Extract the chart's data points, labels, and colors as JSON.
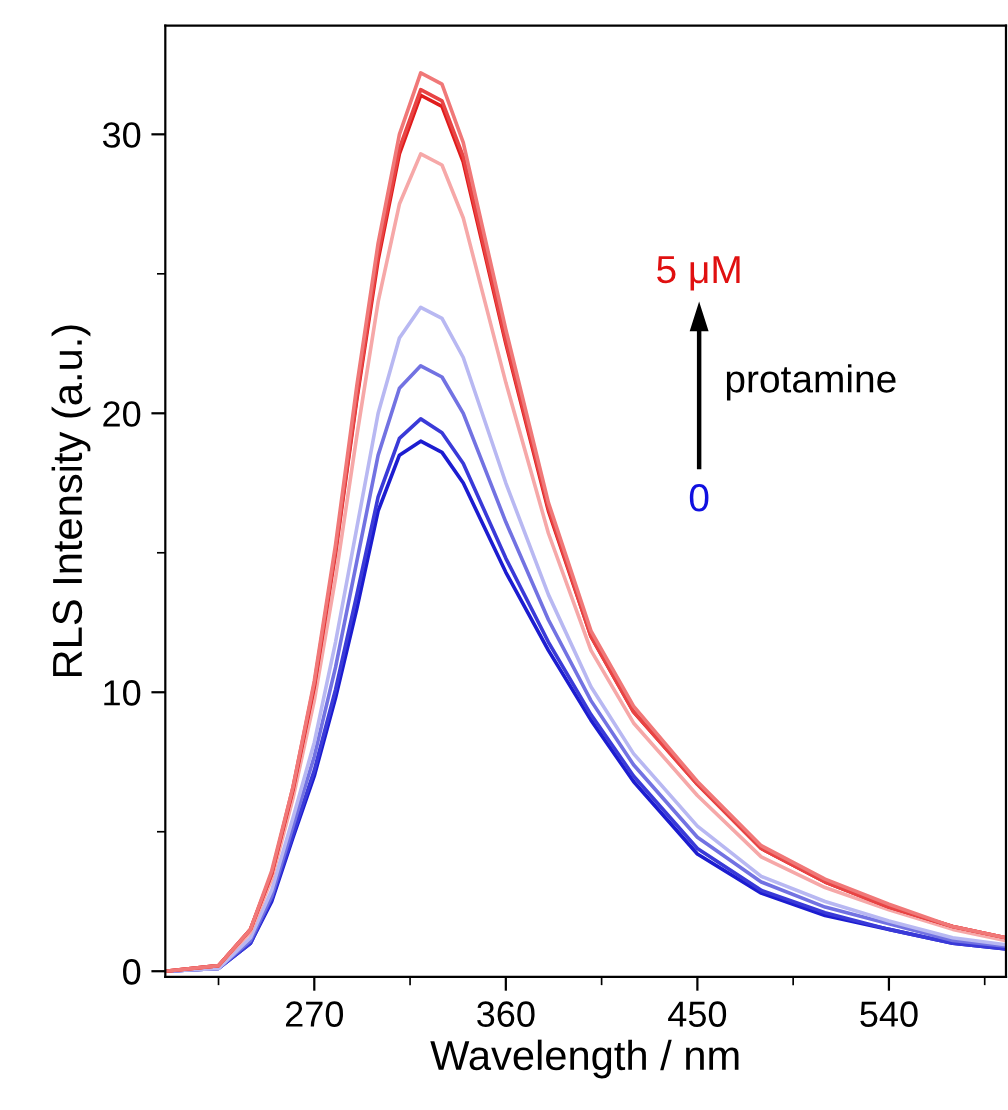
{
  "chart_data": {
    "type": "line",
    "xlabel": "Wavelength / nm",
    "ylabel": "RLS Intensity (a.u.)",
    "x": [
      200,
      225,
      240,
      250,
      260,
      270,
      280,
      290,
      300,
      310,
      320,
      330,
      340,
      360,
      380,
      400,
      420,
      450,
      480,
      510,
      540,
      570,
      595
    ],
    "series": [
      {
        "color": "#1c1cd0",
        "values": [
          0,
          0.1,
          1.0,
          2.5,
          4.8,
          7.0,
          9.8,
          13.0,
          16.5,
          18.5,
          19.0,
          18.6,
          17.5,
          14.3,
          11.5,
          9.0,
          6.8,
          4.2,
          2.8,
          2.0,
          1.5,
          1.0,
          0.8
        ]
      },
      {
        "color": "#3a3ad8",
        "values": [
          0,
          0.1,
          1.0,
          2.6,
          4.9,
          7.2,
          10.1,
          13.5,
          17.0,
          19.1,
          19.8,
          19.3,
          18.2,
          14.8,
          11.8,
          9.2,
          7.0,
          4.4,
          2.9,
          2.1,
          1.5,
          1.0,
          0.8
        ]
      },
      {
        "color": "#7272e2",
        "values": [
          0,
          0.1,
          1.1,
          2.7,
          5.2,
          7.7,
          10.9,
          14.7,
          18.5,
          20.9,
          21.7,
          21.3,
          20.0,
          16.1,
          12.6,
          9.7,
          7.4,
          4.8,
          3.2,
          2.3,
          1.7,
          1.1,
          0.9
        ]
      },
      {
        "color": "#b8b8f2",
        "values": [
          0,
          0.1,
          1.2,
          2.9,
          5.5,
          8.2,
          11.8,
          15.9,
          20.0,
          22.7,
          23.8,
          23.4,
          22.0,
          17.5,
          13.5,
          10.2,
          7.8,
          5.2,
          3.4,
          2.5,
          1.8,
          1.2,
          0.95
        ]
      },
      {
        "color": "#f6a8a8",
        "values": [
          0,
          0.2,
          1.4,
          3.3,
          6.2,
          9.7,
          14.1,
          19.2,
          24.0,
          27.5,
          29.3,
          28.9,
          27.0,
          21.1,
          15.7,
          11.5,
          8.9,
          6.3,
          4.1,
          3.0,
          2.2,
          1.5,
          1.1
        ]
      },
      {
        "color": "#e01c1c",
        "values": [
          0,
          0.2,
          1.5,
          3.5,
          6.5,
          10.2,
          15.0,
          20.5,
          25.5,
          29.3,
          31.4,
          31.0,
          29.0,
          22.5,
          16.5,
          12.0,
          9.3,
          6.7,
          4.4,
          3.2,
          2.3,
          1.6,
          1.2
        ]
      },
      {
        "color": "#e84444",
        "values": [
          0,
          0.2,
          1.5,
          3.5,
          6.6,
          10.3,
          15.1,
          20.6,
          25.7,
          29.5,
          31.6,
          31.2,
          29.2,
          22.6,
          16.6,
          12.0,
          9.3,
          6.7,
          4.4,
          3.2,
          2.3,
          1.6,
          1.2
        ]
      },
      {
        "color": "#f07878",
        "values": [
          0,
          0.2,
          1.5,
          3.6,
          6.6,
          10.4,
          15.3,
          21.0,
          26.1,
          30.0,
          32.2,
          31.8,
          29.7,
          23.0,
          16.8,
          12.2,
          9.5,
          6.8,
          4.5,
          3.3,
          2.4,
          1.6,
          1.2
        ]
      }
    ],
    "xlim": [
      200,
      595
    ],
    "ylim": [
      -0.2,
      33.9
    ],
    "xticks": [
      270,
      360,
      450,
      540
    ],
    "yticks": [
      0,
      10,
      20,
      30
    ],
    "annotations": [
      "5 μM",
      "protamine",
      "0"
    ],
    "grid": false,
    "legend": false
  }
}
